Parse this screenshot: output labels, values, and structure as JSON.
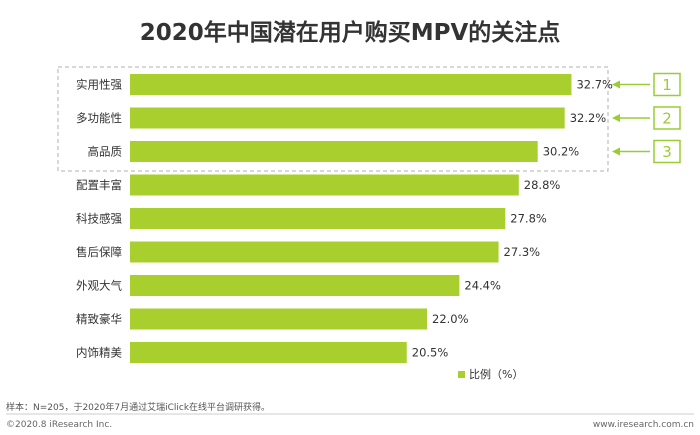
{
  "colors": {
    "bar": "#a9cf2e",
    "accent": "#9acd32",
    "text": "#333333",
    "dash": "#b0b0b0",
    "divider": "#cccccc"
  },
  "chart_data": {
    "type": "bar",
    "orientation": "horizontal",
    "title": "2020年中国潜在用户购买MPV的关注点",
    "categories": [
      "实用性强",
      "多功能性",
      "高品质",
      "配置丰富",
      "科技感强",
      "售后保障",
      "外观大气",
      "精致豪华",
      "内饰精美"
    ],
    "series": [
      {
        "name": "比例（%）",
        "values": [
          32.7,
          32.2,
          30.2,
          28.8,
          27.8,
          27.3,
          24.4,
          22.0,
          20.5
        ]
      }
    ],
    "value_labels": [
      "32.7%",
      "32.2%",
      "30.2%",
      "28.8%",
      "27.8%",
      "27.3%",
      "24.4%",
      "22.0%",
      "20.5%"
    ],
    "highlight_ranks": [
      "1",
      "2",
      "3"
    ],
    "legend_position": "bottom-right",
    "grid": false
  },
  "note": "样本：N=205，于2020年7月通过艾瑞iClick在线平台调研获得。",
  "footer": {
    "left": "©2020.8 iResearch Inc.",
    "right": "www.iresearch.com.cn"
  }
}
